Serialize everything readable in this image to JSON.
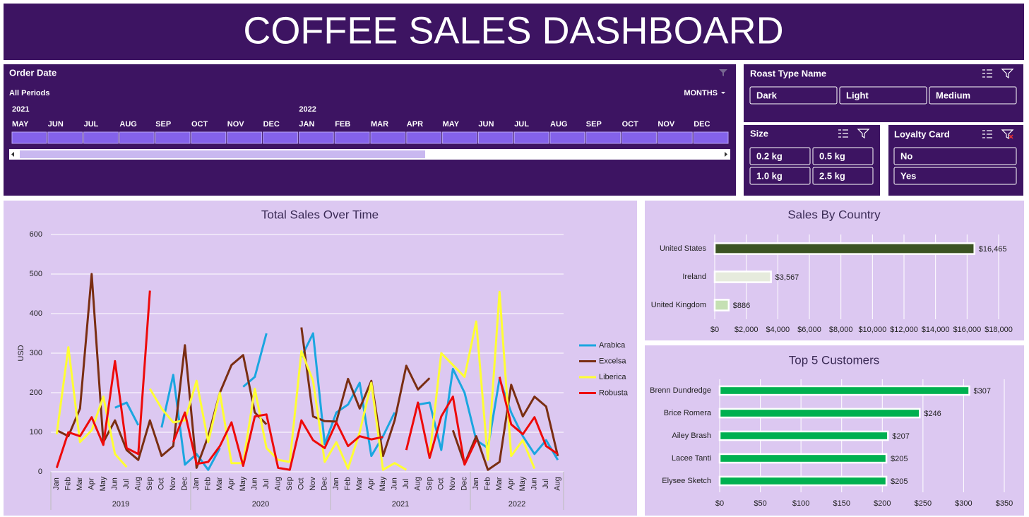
{
  "header": {
    "title": "COFFEE SALES DASHBOARD"
  },
  "order_date": {
    "title": "Order Date",
    "period": "All Periods",
    "level": "MONTHS",
    "years": [
      "2021",
      "2022"
    ],
    "months": [
      "MAY",
      "JUN",
      "JUL",
      "AUG",
      "SEP",
      "OCT",
      "NOV",
      "DEC",
      "JAN",
      "FEB",
      "MAR",
      "APR",
      "MAY",
      "JUN",
      "JUL",
      "AUG",
      "SEP",
      "OCT",
      "NOV",
      "DEC"
    ]
  },
  "roast": {
    "title": "Roast Type Name",
    "items": [
      "Dark",
      "Light",
      "Medium"
    ]
  },
  "size": {
    "title": "Size",
    "items": [
      "0.2 kg",
      "0.5 kg",
      "1.0 kg",
      "2.5 kg"
    ]
  },
  "loyalty": {
    "title": "Loyalty Card",
    "items": [
      "No",
      "Yes"
    ]
  },
  "chart_data": [
    {
      "type": "line",
      "title": "Total Sales Over Time",
      "ylabel": "USD",
      "categories": [
        "Jan",
        "Feb",
        "Mar",
        "Apr",
        "May",
        "Jun",
        "Jul",
        "Aug",
        "Sep",
        "Oct",
        "Nov",
        "Dec",
        "Jan",
        "Feb",
        "Mar",
        "Apr",
        "May",
        "Jun",
        "Jul",
        "Aug",
        "Sep",
        "Oct",
        "Nov",
        "Dec",
        "Jan",
        "Feb",
        "Mar",
        "Apr",
        "May",
        "Jun",
        "Jul",
        "Aug",
        "Sep",
        "Oct",
        "Nov",
        "Dec",
        "Jan",
        "Feb",
        "Mar",
        "Apr",
        "May",
        "Jun",
        "Jul",
        "Aug"
      ],
      "groups": [
        "2019",
        "2020",
        "2021",
        "2022"
      ],
      "ylim": [
        0,
        600
      ],
      "yticks": [
        0,
        100,
        200,
        300,
        400,
        500,
        600
      ],
      "grid": true,
      "legend": "right",
      "series": [
        {
          "name": "Arabica",
          "color": "#1ba6e0",
          "values": [
            null,
            null,
            null,
            null,
            null,
            162,
            175,
            118,
            null,
            112,
            245,
            18,
            45,
            5,
            60,
            null,
            215,
            240,
            350,
            null,
            null,
            290,
            350,
            70,
            150,
            170,
            225,
            40,
            90,
            150,
            null,
            170,
            175,
            55,
            260,
            200,
            80,
            60,
            235,
            150,
            90,
            45,
            80,
            30
          ]
        },
        {
          "name": "Excelsa",
          "color": "#7a2e12",
          "values": [
            105,
            90,
            160,
            500,
            75,
            130,
            55,
            30,
            130,
            40,
            65,
            320,
            10,
            90,
            200,
            270,
            295,
            150,
            120,
            null,
            null,
            365,
            140,
            128,
            127,
            235,
            160,
            230,
            40,
            130,
            268,
            208,
            237,
            null,
            105,
            20,
            90,
            5,
            25,
            220,
            140,
            190,
            165,
            40
          ]
        },
        {
          "name": "Liberica",
          "color": "#ffff33",
          "values": [
            95,
            315,
            75,
            105,
            190,
            45,
            12,
            null,
            210,
            160,
            125,
            130,
            230,
            75,
            200,
            22,
            22,
            210,
            60,
            30,
            25,
            305,
            230,
            25,
            75,
            8,
            100,
            225,
            5,
            22,
            5,
            null,
            40,
            300,
            270,
            240,
            380,
            30,
            455,
            40,
            80,
            8,
            null,
            null
          ]
        },
        {
          "name": "Robusta",
          "color": "#ee0a0a",
          "values": [
            10,
            100,
            90,
            138,
            68,
            280,
            60,
            45,
            458,
            null,
            75,
            150,
            20,
            25,
            65,
            125,
            15,
            140,
            145,
            10,
            5,
            130,
            80,
            60,
            125,
            65,
            90,
            82,
            88,
            null,
            55,
            175,
            35,
            140,
            190,
            18,
            80,
            null,
            240,
            120,
            95,
            138,
            65,
            45
          ]
        }
      ]
    },
    {
      "type": "barh",
      "title": "Sales By Country",
      "categories": [
        "United States",
        "Ireland",
        "United Kingdom"
      ],
      "values": [
        16465,
        3567,
        886
      ],
      "value_labels": [
        "$16,465",
        "$3,567",
        "$886"
      ],
      "colors": [
        "#3b5323",
        "#e6ebdd",
        "#c5e0b3"
      ],
      "xlim": [
        0,
        18000
      ],
      "grid": true,
      "xticks": [
        {
          "value": 0,
          "label": "$0"
        },
        {
          "value": 2000,
          "label": "$2,000"
        },
        {
          "value": 4000,
          "label": "$4,000"
        },
        {
          "value": 6000,
          "label": "$6,000"
        },
        {
          "value": 8000,
          "label": "$8,000"
        },
        {
          "value": 10000,
          "label": "$10,000"
        },
        {
          "value": 12000,
          "label": "$12,000"
        },
        {
          "value": 14000,
          "label": "$14,000"
        },
        {
          "value": 16000,
          "label": "$16,000"
        },
        {
          "value": 18000,
          "label": "$18,000"
        }
      ]
    },
    {
      "type": "barh",
      "title": "Top 5 Customers",
      "categories": [
        "Brenn Dundredge",
        "Brice Romera",
        "Ailey Brash",
        "Lacee Tanti",
        "Elysee Sketch"
      ],
      "values": [
        307,
        246,
        207,
        205,
        205
      ],
      "value_labels": [
        "$307",
        "$246",
        "$207",
        "$205",
        "$205"
      ],
      "color": "#00b050",
      "xlim": [
        0,
        350
      ],
      "grid": true,
      "xticks": [
        {
          "value": 0,
          "label": "$0"
        },
        {
          "value": 50,
          "label": "$50"
        },
        {
          "value": 100,
          "label": "$100"
        },
        {
          "value": 150,
          "label": "$150"
        },
        {
          "value": 200,
          "label": "$200"
        },
        {
          "value": 250,
          "label": "$250"
        },
        {
          "value": 300,
          "label": "$300"
        },
        {
          "value": 350,
          "label": "$350"
        }
      ]
    }
  ]
}
